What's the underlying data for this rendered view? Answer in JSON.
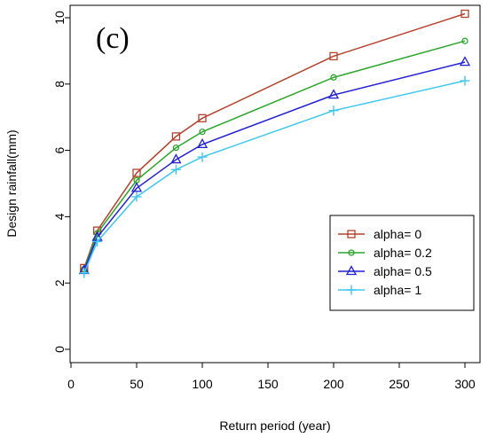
{
  "panel_label": "(c)",
  "chart_data": {
    "type": "line",
    "xlabel": "Return period (year)",
    "ylabel": "Design rainfall(mm)",
    "xlim": [
      0,
      310
    ],
    "ylim": [
      0,
      10.2
    ],
    "xticks": [
      0,
      50,
      100,
      150,
      200,
      250,
      300
    ],
    "yticks": [
      0,
      2,
      4,
      6,
      8,
      10
    ],
    "x": [
      10,
      20,
      50,
      80,
      100,
      200,
      300
    ],
    "legend_position": "lower-right",
    "grid": false,
    "series": [
      {
        "name": "alpha= 0",
        "color": "#b5412c",
        "marker": "square",
        "values": [
          2.45,
          3.58,
          5.32,
          6.42,
          6.97,
          8.84,
          10.12
        ]
      },
      {
        "name": "alpha= 0.2",
        "color": "#2aa52a",
        "marker": "circle",
        "values": [
          2.42,
          3.5,
          5.1,
          6.08,
          6.56,
          8.2,
          9.3
        ]
      },
      {
        "name": "alpha= 0.5",
        "color": "#1f1fd6",
        "marker": "triangle",
        "values": [
          2.38,
          3.38,
          4.86,
          5.72,
          6.18,
          7.67,
          8.66
        ]
      },
      {
        "name": "alpha= 1",
        "color": "#3fc7ef",
        "marker": "plus",
        "values": [
          2.3,
          3.25,
          4.6,
          5.42,
          5.8,
          7.2,
          8.1
        ]
      }
    ]
  }
}
